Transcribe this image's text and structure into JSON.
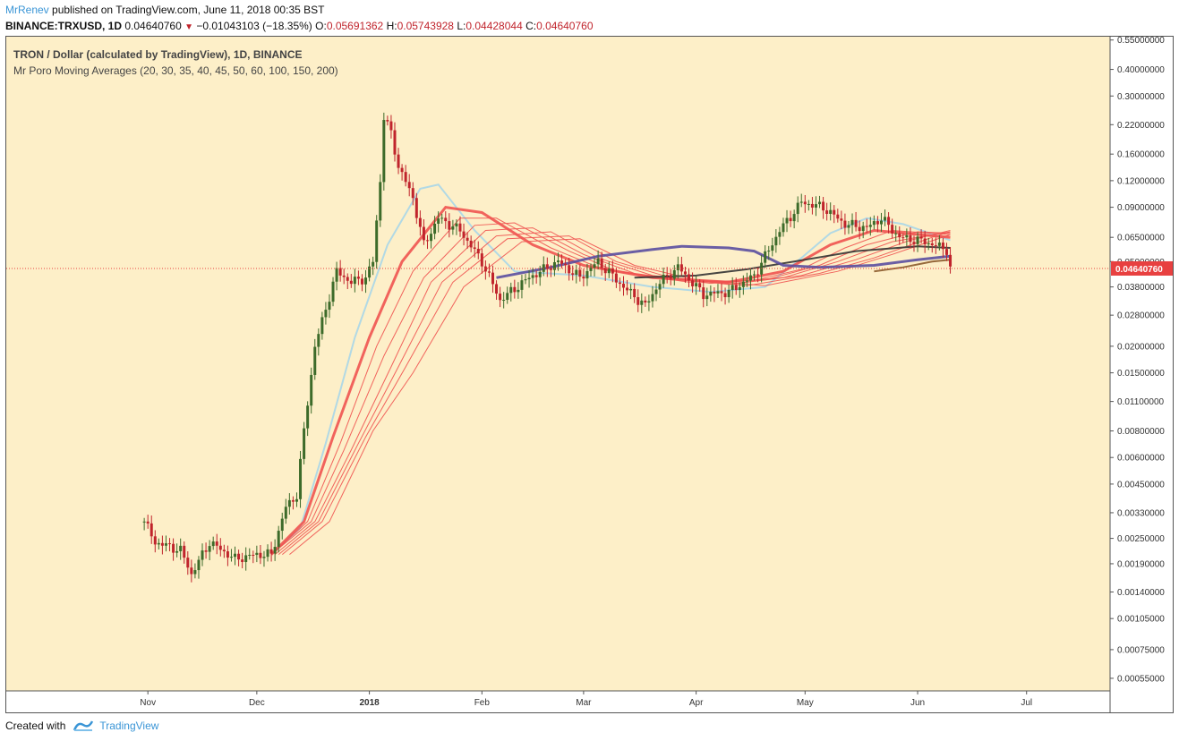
{
  "header": {
    "author": "MrRenev",
    "published": "published on TradingView.com, June 11, 2018 00:35 BST",
    "symbol": "BINANCE:TRXUSD, 1D",
    "last": "0.04640760",
    "change": "−0.01043103 (−18.35%)",
    "o_label": "O:",
    "o": "0.05691362",
    "h_label": "H:",
    "h": "0.05743928",
    "l_label": "L:",
    "l": "0.04428044",
    "c_label": "C:",
    "c": "0.04640760"
  },
  "footer": {
    "created_with": "Created with",
    "brand": "TradingView"
  },
  "colors": {
    "background": "#fdefc8",
    "up": "#3d6b2a",
    "down": "#c0242c",
    "price_label": "#e84040",
    "ma_light_blue": "#a9d6e8",
    "ma_red": "#ef5350",
    "ma_purple": "#5a4ea0",
    "ma_black": "#333333",
    "ma_brown": "#8b5a2b"
  },
  "chart_data": {
    "type": "candlestick",
    "title": "TRON / Dollar (calculated by TradingView), 1D, BINANCE",
    "indicator": "Mr Poro Moving Averages (20, 30, 35, 40, 45, 50, 60, 100, 150, 200)",
    "scale": "log",
    "last_price_label": "0.04640760",
    "y_ticks": [
      "0.55000000",
      "0.40000000",
      "0.30000000",
      "0.22000000",
      "0.16000000",
      "0.12000000",
      "0.09000000",
      "0.06500000",
      "0.05000000",
      "0.03800000",
      "0.02800000",
      "0.02000000",
      "0.01500000",
      "0.01100000",
      "0.00800000",
      "0.00600000",
      "0.00450000",
      "0.00330000",
      "0.00250000",
      "0.00190000",
      "0.00140000",
      "0.00105000",
      "0.00075000",
      "0.00055000"
    ],
    "x_ticks": [
      "Nov",
      "Dec",
      "2018",
      "Feb",
      "Mar",
      "Apr",
      "May",
      "Jun",
      "Jul"
    ],
    "x_tick_dates": [
      "2017-11-01",
      "2017-12-01",
      "2018-01-01",
      "2018-02-01",
      "2018-03-01",
      "2018-04-01",
      "2018-05-01",
      "2018-06-01",
      "2018-07-01"
    ],
    "x_range": [
      "2017-09-23",
      "2018-07-24"
    ],
    "y_range": [
      0.00048,
      0.57
    ],
    "keypoints": [
      {
        "date": "2017-10-31",
        "close": 0.003
      },
      {
        "date": "2017-11-03",
        "close": 0.0024
      },
      {
        "date": "2017-11-10",
        "close": 0.0022
      },
      {
        "date": "2017-11-13",
        "close": 0.0017
      },
      {
        "date": "2017-11-18",
        "close": 0.0024
      },
      {
        "date": "2017-11-25",
        "close": 0.002
      },
      {
        "date": "2017-12-01",
        "close": 0.0021
      },
      {
        "date": "2017-12-05",
        "close": 0.0021
      },
      {
        "date": "2017-12-09",
        "close": 0.0035
      },
      {
        "date": "2017-12-12",
        "close": 0.004
      },
      {
        "date": "2017-12-14",
        "close": 0.008
      },
      {
        "date": "2017-12-17",
        "close": 0.02
      },
      {
        "date": "2017-12-20",
        "close": 0.03
      },
      {
        "date": "2017-12-23",
        "close": 0.045
      },
      {
        "date": "2017-12-27",
        "close": 0.04
      },
      {
        "date": "2017-12-31",
        "close": 0.042
      },
      {
        "date": "2018-01-02",
        "close": 0.05
      },
      {
        "date": "2018-01-04",
        "close": 0.12
      },
      {
        "date": "2018-01-05",
        "close": 0.24
      },
      {
        "date": "2018-01-07",
        "close": 0.2
      },
      {
        "date": "2018-01-09",
        "close": 0.14
      },
      {
        "date": "2018-01-13",
        "close": 0.1
      },
      {
        "date": "2018-01-16",
        "close": 0.06
      },
      {
        "date": "2018-01-20",
        "close": 0.08
      },
      {
        "date": "2018-01-26",
        "close": 0.07
      },
      {
        "date": "2018-02-01",
        "close": 0.05
      },
      {
        "date": "2018-02-06",
        "close": 0.033
      },
      {
        "date": "2018-02-14",
        "close": 0.042
      },
      {
        "date": "2018-02-22",
        "close": 0.05
      },
      {
        "date": "2018-02-28",
        "close": 0.042
      },
      {
        "date": "2018-03-05",
        "close": 0.05
      },
      {
        "date": "2018-03-12",
        "close": 0.038
      },
      {
        "date": "2018-03-18",
        "close": 0.031
      },
      {
        "date": "2018-03-22",
        "close": 0.04
      },
      {
        "date": "2018-03-27",
        "close": 0.047
      },
      {
        "date": "2018-04-03",
        "close": 0.035
      },
      {
        "date": "2018-04-10",
        "close": 0.036
      },
      {
        "date": "2018-04-17",
        "close": 0.043
      },
      {
        "date": "2018-04-24",
        "close": 0.07
      },
      {
        "date": "2018-04-30",
        "close": 0.095
      },
      {
        "date": "2018-05-06",
        "close": 0.09
      },
      {
        "date": "2018-05-12",
        "close": 0.075
      },
      {
        "date": "2018-05-18",
        "close": 0.072
      },
      {
        "date": "2018-05-22",
        "close": 0.08
      },
      {
        "date": "2018-05-27",
        "close": 0.065
      },
      {
        "date": "2018-06-03",
        "close": 0.062
      },
      {
        "date": "2018-06-09",
        "close": 0.057
      },
      {
        "date": "2018-06-10",
        "close": 0.0464
      }
    ],
    "moving_averages": [
      {
        "color": "#a9d6e8",
        "points": [
          [
            "2017-12-05",
            0.0021
          ],
          [
            "2017-12-13",
            0.0028
          ],
          [
            "2017-12-20",
            0.007
          ],
          [
            "2017-12-28",
            0.022
          ],
          [
            "2018-01-06",
            0.06
          ],
          [
            "2018-01-15",
            0.11
          ],
          [
            "2018-01-20",
            0.115
          ],
          [
            "2018-01-30",
            0.07
          ],
          [
            "2018-02-10",
            0.045
          ],
          [
            "2018-03-01",
            0.043
          ],
          [
            "2018-03-20",
            0.038
          ],
          [
            "2018-04-05",
            0.036
          ],
          [
            "2018-04-20",
            0.038
          ],
          [
            "2018-04-30",
            0.052
          ],
          [
            "2018-05-08",
            0.068
          ],
          [
            "2018-05-18",
            0.08
          ],
          [
            "2018-05-28",
            0.075
          ],
          [
            "2018-06-10",
            0.063
          ]
        ]
      },
      {
        "color": "#ef5350",
        "points": [
          [
            "2017-12-05",
            0.0021
          ],
          [
            "2017-12-14",
            0.003
          ],
          [
            "2017-12-22",
            0.0075
          ],
          [
            "2018-01-01",
            0.022
          ],
          [
            "2018-01-10",
            0.05
          ],
          [
            "2018-01-22",
            0.09
          ],
          [
            "2018-02-01",
            0.085
          ],
          [
            "2018-02-15",
            0.06
          ],
          [
            "2018-03-01",
            0.048
          ],
          [
            "2018-03-20",
            0.042
          ],
          [
            "2018-04-10",
            0.04
          ],
          [
            "2018-04-25",
            0.045
          ],
          [
            "2018-05-08",
            0.06
          ],
          [
            "2018-05-20",
            0.07
          ],
          [
            "2018-06-10",
            0.065
          ]
        ]
      },
      {
        "color": "#ef5350",
        "points": [
          [
            "2017-12-05",
            0.0021
          ],
          [
            "2017-12-15",
            0.003
          ],
          [
            "2017-12-24",
            0.007
          ],
          [
            "2018-01-03",
            0.02
          ],
          [
            "2018-01-13",
            0.045
          ],
          [
            "2018-01-26",
            0.08
          ],
          [
            "2018-02-05",
            0.08
          ],
          [
            "2018-02-20",
            0.058
          ],
          [
            "2018-03-05",
            0.047
          ],
          [
            "2018-03-25",
            0.041
          ],
          [
            "2018-04-15",
            0.04
          ],
          [
            "2018-04-30",
            0.046
          ],
          [
            "2018-05-12",
            0.058
          ],
          [
            "2018-05-25",
            0.07
          ],
          [
            "2018-06-10",
            0.067
          ]
        ]
      },
      {
        "color": "#ef5350",
        "points": [
          [
            "2017-12-05",
            0.0021
          ],
          [
            "2017-12-16",
            0.003
          ],
          [
            "2017-12-25",
            0.0065
          ],
          [
            "2018-01-05",
            0.018
          ],
          [
            "2018-01-16",
            0.042
          ],
          [
            "2018-01-30",
            0.074
          ],
          [
            "2018-02-10",
            0.076
          ],
          [
            "2018-02-25",
            0.056
          ],
          [
            "2018-03-10",
            0.045
          ],
          [
            "2018-03-30",
            0.04
          ],
          [
            "2018-04-20",
            0.041
          ],
          [
            "2018-05-05",
            0.048
          ],
          [
            "2018-05-18",
            0.06
          ],
          [
            "2018-06-01",
            0.069
          ],
          [
            "2018-06-10",
            0.068
          ]
        ]
      },
      {
        "color": "#ef5350",
        "points": [
          [
            "2017-12-06",
            0.0021
          ],
          [
            "2017-12-17",
            0.003
          ],
          [
            "2017-12-27",
            0.0065
          ],
          [
            "2018-01-07",
            0.016
          ],
          [
            "2018-01-18",
            0.04
          ],
          [
            "2018-02-02",
            0.07
          ],
          [
            "2018-02-15",
            0.072
          ],
          [
            "2018-03-01",
            0.054
          ],
          [
            "2018-03-15",
            0.044
          ],
          [
            "2018-04-05",
            0.0395
          ],
          [
            "2018-04-25",
            0.042
          ],
          [
            "2018-05-10",
            0.05
          ],
          [
            "2018-05-25",
            0.062
          ],
          [
            "2018-06-10",
            0.069
          ]
        ]
      },
      {
        "color": "#ef5350",
        "points": [
          [
            "2017-12-07",
            0.0021
          ],
          [
            "2017-12-18",
            0.003
          ],
          [
            "2017-12-29",
            0.007
          ],
          [
            "2018-01-09",
            0.016
          ],
          [
            "2018-01-21",
            0.04
          ],
          [
            "2018-02-05",
            0.066
          ],
          [
            "2018-02-20",
            0.069
          ],
          [
            "2018-03-05",
            0.052
          ],
          [
            "2018-03-20",
            0.043
          ],
          [
            "2018-04-10",
            0.039
          ],
          [
            "2018-04-30",
            0.043
          ],
          [
            "2018-05-15",
            0.051
          ],
          [
            "2018-05-30",
            0.063
          ],
          [
            "2018-06-10",
            0.07
          ]
        ]
      },
      {
        "color": "#ef5350",
        "points": [
          [
            "2017-12-08",
            0.0021
          ],
          [
            "2017-12-19",
            0.003
          ],
          [
            "2017-12-31",
            0.0075
          ],
          [
            "2018-01-11",
            0.016
          ],
          [
            "2018-01-24",
            0.04
          ],
          [
            "2018-02-08",
            0.064
          ],
          [
            "2018-02-25",
            0.066
          ],
          [
            "2018-03-10",
            0.05
          ],
          [
            "2018-03-25",
            0.042
          ],
          [
            "2018-04-15",
            0.0385
          ],
          [
            "2018-05-05",
            0.044
          ],
          [
            "2018-05-20",
            0.052
          ],
          [
            "2018-06-05",
            0.065
          ],
          [
            "2018-06-10",
            0.069
          ]
        ]
      },
      {
        "color": "#ef5350",
        "points": [
          [
            "2017-12-10",
            0.0021
          ],
          [
            "2017-12-21",
            0.003
          ],
          [
            "2018-01-02",
            0.008
          ],
          [
            "2018-01-13",
            0.015
          ],
          [
            "2018-01-27",
            0.038
          ],
          [
            "2018-02-12",
            0.062
          ],
          [
            "2018-02-28",
            0.064
          ],
          [
            "2018-03-15",
            0.048
          ],
          [
            "2018-04-01",
            0.041
          ],
          [
            "2018-04-20",
            0.0385
          ],
          [
            "2018-05-10",
            0.045
          ],
          [
            "2018-05-25",
            0.054
          ],
          [
            "2018-06-10",
            0.067
          ]
        ]
      },
      {
        "color": "#333333",
        "points": [
          [
            "2018-03-15",
            0.042
          ],
          [
            "2018-04-01",
            0.043
          ],
          [
            "2018-04-15",
            0.046
          ],
          [
            "2018-05-01",
            0.051
          ],
          [
            "2018-05-15",
            0.056
          ],
          [
            "2018-06-01",
            0.059
          ],
          [
            "2018-06-10",
            0.058
          ]
        ]
      },
      {
        "color": "#5a4ea0",
        "points": [
          [
            "2018-02-05",
            0.042
          ],
          [
            "2018-02-20",
            0.047
          ],
          [
            "2018-03-05",
            0.053
          ],
          [
            "2018-03-20",
            0.057
          ],
          [
            "2018-03-28",
            0.059
          ],
          [
            "2018-04-10",
            0.058
          ],
          [
            "2018-04-17",
            0.056
          ],
          [
            "2018-04-25",
            0.048
          ],
          [
            "2018-05-05",
            0.047
          ],
          [
            "2018-05-20",
            0.048
          ],
          [
            "2018-06-01",
            0.051
          ],
          [
            "2018-06-10",
            0.053
          ]
        ]
      },
      {
        "color": "#8b5a2b",
        "points": [
          [
            "2018-05-20",
            0.045
          ],
          [
            "2018-05-28",
            0.047
          ],
          [
            "2018-06-05",
            0.05
          ],
          [
            "2018-06-10",
            0.051
          ]
        ]
      }
    ]
  }
}
